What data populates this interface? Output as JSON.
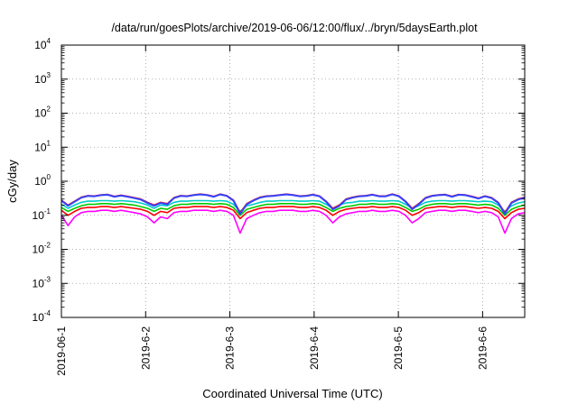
{
  "chart_data": {
    "type": "line",
    "title": "/data/run/goesPlots/archive/2019-06-06/12:00/flux/../bryn/5daysEarth.plot",
    "xlabel": "Coordinated Universal Time (UTC)",
    "ylabel": "cGy/day",
    "yscale": "log",
    "ylim": [
      0.0001,
      10000
    ],
    "xlim": [
      "2019-06-01 00:00",
      "2019-06-06 12:00"
    ],
    "grid": true,
    "y_ticks": [
      {
        "base": "10",
        "exp": "-4"
      },
      {
        "base": "10",
        "exp": "-3"
      },
      {
        "base": "10",
        "exp": "-2"
      },
      {
        "base": "10",
        "exp": "-1"
      },
      {
        "base": "10",
        "exp": "0"
      },
      {
        "base": "10",
        "exp": "1"
      },
      {
        "base": "10",
        "exp": "2"
      },
      {
        "base": "10",
        "exp": "3"
      },
      {
        "base": "10",
        "exp": "4"
      }
    ],
    "x_ticks": [
      "2019-06-1",
      "2019-6-2",
      "2019-6-3",
      "2019-6-4",
      "2019-6-5",
      "2019-6-6"
    ],
    "x_tick_values": [
      "2019-06-01",
      "2019-06-02",
      "2019-06-03",
      "2019-06-04",
      "2019-06-05",
      "2019-06-06"
    ],
    "series_order": "drawn first to last",
    "series": [
      {
        "color": "#ff00ff",
        "values": [
          0.1,
          0.05,
          0.09,
          0.12,
          0.13,
          0.13,
          0.14,
          0.14,
          0.13,
          0.14,
          0.13,
          0.12,
          0.11,
          0.09,
          0.06,
          0.09,
          0.08,
          0.12,
          0.13,
          0.13,
          0.14,
          0.14,
          0.14,
          0.13,
          0.14,
          0.13,
          0.1,
          0.03,
          0.08,
          0.1,
          0.12,
          0.13,
          0.13,
          0.14,
          0.14,
          0.14,
          0.13,
          0.13,
          0.14,
          0.13,
          0.1,
          0.06,
          0.09,
          0.11,
          0.12,
          0.13,
          0.13,
          0.14,
          0.13,
          0.13,
          0.14,
          0.13,
          0.1,
          0.06,
          0.08,
          0.12,
          0.13,
          0.14,
          0.14,
          0.13,
          0.14,
          0.14,
          0.13,
          0.12,
          0.13,
          0.12,
          0.09,
          0.03,
          0.08,
          0.11,
          0.12
        ]
      },
      {
        "color": "#ff0000",
        "values": [
          0.14,
          0.1,
          0.13,
          0.16,
          0.17,
          0.17,
          0.18,
          0.18,
          0.17,
          0.18,
          0.17,
          0.16,
          0.15,
          0.13,
          0.1,
          0.13,
          0.12,
          0.16,
          0.17,
          0.17,
          0.18,
          0.18,
          0.18,
          0.17,
          0.18,
          0.17,
          0.14,
          0.08,
          0.12,
          0.14,
          0.16,
          0.17,
          0.17,
          0.18,
          0.18,
          0.18,
          0.17,
          0.17,
          0.18,
          0.17,
          0.14,
          0.1,
          0.13,
          0.15,
          0.16,
          0.17,
          0.17,
          0.18,
          0.17,
          0.17,
          0.18,
          0.17,
          0.14,
          0.1,
          0.12,
          0.16,
          0.17,
          0.18,
          0.18,
          0.17,
          0.18,
          0.18,
          0.17,
          0.16,
          0.17,
          0.16,
          0.13,
          0.08,
          0.12,
          0.15,
          0.16
        ]
      },
      {
        "color": "#00cc00",
        "values": [
          0.17,
          0.13,
          0.16,
          0.19,
          0.21,
          0.21,
          0.22,
          0.22,
          0.21,
          0.22,
          0.21,
          0.2,
          0.18,
          0.16,
          0.13,
          0.16,
          0.15,
          0.19,
          0.21,
          0.21,
          0.22,
          0.22,
          0.22,
          0.21,
          0.22,
          0.21,
          0.17,
          0.1,
          0.15,
          0.17,
          0.19,
          0.21,
          0.21,
          0.22,
          0.22,
          0.22,
          0.21,
          0.21,
          0.22,
          0.21,
          0.17,
          0.13,
          0.16,
          0.18,
          0.19,
          0.21,
          0.21,
          0.22,
          0.21,
          0.21,
          0.22,
          0.21,
          0.17,
          0.13,
          0.15,
          0.19,
          0.21,
          0.22,
          0.22,
          0.21,
          0.22,
          0.22,
          0.21,
          0.2,
          0.21,
          0.2,
          0.16,
          0.1,
          0.15,
          0.18,
          0.2
        ]
      },
      {
        "color": "#00cccc",
        "values": [
          0.21,
          0.16,
          0.2,
          0.24,
          0.26,
          0.26,
          0.27,
          0.27,
          0.26,
          0.27,
          0.26,
          0.25,
          0.23,
          0.2,
          0.16,
          0.2,
          0.19,
          0.24,
          0.26,
          0.26,
          0.27,
          0.27,
          0.27,
          0.26,
          0.27,
          0.26,
          0.21,
          0.13,
          0.19,
          0.21,
          0.24,
          0.26,
          0.26,
          0.27,
          0.27,
          0.27,
          0.26,
          0.26,
          0.27,
          0.26,
          0.21,
          0.16,
          0.2,
          0.23,
          0.24,
          0.26,
          0.26,
          0.27,
          0.26,
          0.26,
          0.27,
          0.26,
          0.21,
          0.16,
          0.19,
          0.24,
          0.26,
          0.27,
          0.27,
          0.26,
          0.27,
          0.27,
          0.26,
          0.25,
          0.26,
          0.25,
          0.2,
          0.13,
          0.19,
          0.23,
          0.25
        ]
      },
      {
        "color": "#ff0000",
        "values": [
          0.28,
          0.2,
          0.26,
          0.34,
          0.38,
          0.37,
          0.4,
          0.41,
          0.36,
          0.39,
          0.36,
          0.33,
          0.3,
          0.24,
          0.2,
          0.24,
          0.22,
          0.33,
          0.38,
          0.37,
          0.4,
          0.42,
          0.4,
          0.36,
          0.42,
          0.38,
          0.28,
          0.12,
          0.22,
          0.28,
          0.34,
          0.37,
          0.38,
          0.4,
          0.42,
          0.4,
          0.37,
          0.38,
          0.41,
          0.37,
          0.26,
          0.16,
          0.2,
          0.3,
          0.34,
          0.37,
          0.38,
          0.41,
          0.37,
          0.37,
          0.42,
          0.37,
          0.26,
          0.16,
          0.22,
          0.33,
          0.38,
          0.4,
          0.41,
          0.36,
          0.41,
          0.4,
          0.36,
          0.32,
          0.37,
          0.33,
          0.24,
          0.12,
          0.24,
          0.3,
          0.34
        ]
      },
      {
        "color": "#3344ff",
        "values": [
          0.27,
          0.19,
          0.25,
          0.33,
          0.37,
          0.36,
          0.39,
          0.4,
          0.35,
          0.38,
          0.35,
          0.32,
          0.29,
          0.23,
          0.19,
          0.23,
          0.21,
          0.32,
          0.37,
          0.36,
          0.39,
          0.41,
          0.39,
          0.35,
          0.41,
          0.37,
          0.27,
          0.11,
          0.21,
          0.27,
          0.33,
          0.36,
          0.37,
          0.39,
          0.41,
          0.39,
          0.36,
          0.37,
          0.4,
          0.36,
          0.25,
          0.15,
          0.19,
          0.29,
          0.33,
          0.36,
          0.37,
          0.4,
          0.36,
          0.36,
          0.41,
          0.36,
          0.25,
          0.15,
          0.21,
          0.32,
          0.37,
          0.39,
          0.4,
          0.35,
          0.4,
          0.39,
          0.35,
          0.31,
          0.36,
          0.32,
          0.23,
          0.11,
          0.23,
          0.29,
          0.33
        ]
      }
    ]
  }
}
